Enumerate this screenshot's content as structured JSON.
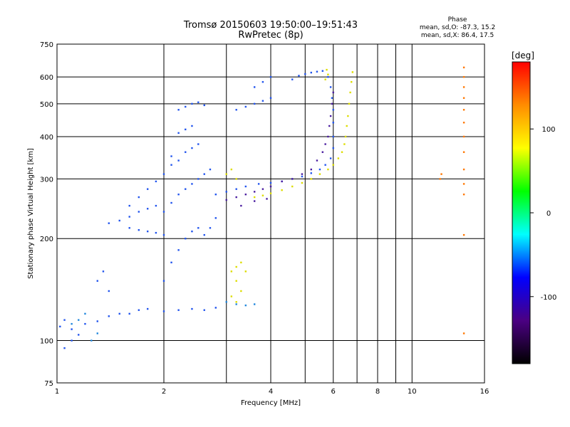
{
  "header": {
    "title_line1": "Tromsø 20150603 19:50:00–19:51:43",
    "title_line2": "RwPretec (8p)",
    "phase_heading": "Phase",
    "phase_o": "mean, sd,O: -87.3, 15.2",
    "phase_x": "mean, sd,X:  86.4, 17.5"
  },
  "chart_data": {
    "type": "scatter",
    "title": "Tromsø 20150603 19:50:00–19:51:43",
    "subtitle": "RwPretec (8p)",
    "xlabel": "Frequency [MHz]",
    "ylabel": "Stationary phase Virtual Height [km]",
    "xscale": "log",
    "yscale": "log",
    "xlim": [
      1,
      16
    ],
    "ylim": [
      75,
      750
    ],
    "x_ticks": [
      1,
      2,
      4,
      6,
      8,
      10,
      16
    ],
    "x_gridlines": [
      2,
      3,
      4,
      5,
      6,
      7,
      8,
      9,
      10
    ],
    "y_ticks": [
      75,
      100,
      200,
      300,
      400,
      500,
      600,
      750
    ],
    "y_gridlines": [
      100,
      200,
      300,
      400,
      500,
      600
    ],
    "grid": true,
    "colorbar": {
      "label": "[deg]",
      "min": -180,
      "max": 180,
      "ticks": [
        100,
        0,
        -100
      ],
      "colors": [
        "#000000",
        "#4b0082",
        "#0000ff",
        "#00ffff",
        "#00ff00",
        "#ffff00",
        "#ff8c00",
        "#ff0000"
      ]
    },
    "series": [
      {
        "color": "#2255ee",
        "points": [
          [
            1.02,
            110
          ],
          [
            1.05,
            115
          ],
          [
            1.1,
            108
          ],
          [
            1.15,
            104
          ],
          [
            1.2,
            112
          ],
          [
            1.3,
            114
          ],
          [
            1.4,
            118
          ],
          [
            1.5,
            120
          ],
          [
            1.6,
            120
          ],
          [
            1.7,
            123
          ],
          [
            1.8,
            124
          ],
          [
            2.0,
            122
          ],
          [
            2.2,
            123
          ],
          [
            2.4,
            124
          ],
          [
            2.6,
            123
          ],
          [
            2.8,
            125
          ],
          [
            2.0,
            150
          ],
          [
            2.1,
            170
          ],
          [
            2.2,
            185
          ],
          [
            2.3,
            200
          ],
          [
            2.4,
            210
          ],
          [
            2.5,
            215
          ],
          [
            2.6,
            205
          ],
          [
            2.7,
            215
          ],
          [
            2.8,
            230
          ],
          [
            2.0,
            240
          ],
          [
            2.1,
            255
          ],
          [
            2.2,
            270
          ],
          [
            2.3,
            280
          ],
          [
            2.4,
            290
          ],
          [
            2.5,
            300
          ],
          [
            2.6,
            310
          ],
          [
            2.7,
            320
          ],
          [
            2.1,
            350
          ],
          [
            2.2,
            340
          ],
          [
            2.3,
            360
          ],
          [
            2.4,
            370
          ],
          [
            2.5,
            380
          ],
          [
            2.2,
            410
          ],
          [
            2.3,
            420
          ],
          [
            2.4,
            430
          ],
          [
            2.2,
            480
          ],
          [
            2.3,
            490
          ],
          [
            2.4,
            500
          ],
          [
            2.5,
            505
          ],
          [
            2.6,
            495
          ],
          [
            1.4,
            222
          ],
          [
            1.5,
            226
          ],
          [
            1.6,
            232
          ],
          [
            1.7,
            240
          ],
          [
            1.8,
            245
          ],
          [
            1.9,
            250
          ],
          [
            1.6,
            215
          ],
          [
            1.7,
            212
          ],
          [
            1.8,
            210
          ],
          [
            1.9,
            208
          ],
          [
            2.0,
            205
          ],
          [
            1.6,
            250
          ],
          [
            1.7,
            265
          ],
          [
            1.8,
            280
          ],
          [
            1.9,
            295
          ],
          [
            2.0,
            310
          ],
          [
            2.1,
            330
          ],
          [
            3.2,
            480
          ],
          [
            3.4,
            490
          ],
          [
            3.6,
            500
          ],
          [
            3.8,
            510
          ],
          [
            4.0,
            520
          ],
          [
            3.6,
            560
          ],
          [
            3.8,
            580
          ],
          [
            4.0,
            600
          ],
          [
            4.6,
            590
          ],
          [
            4.8,
            605
          ],
          [
            5.0,
            612
          ],
          [
            5.2,
            618
          ],
          [
            5.4,
            622
          ],
          [
            5.6,
            625
          ],
          [
            5.8,
            600
          ],
          [
            5.9,
            560
          ],
          [
            5.95,
            520
          ],
          [
            6.0,
            480
          ],
          [
            6.0,
            440
          ],
          [
            6.0,
            400
          ],
          [
            6.0,
            370
          ],
          [
            5.9,
            345
          ],
          [
            5.7,
            330
          ],
          [
            5.5,
            320
          ],
          [
            5.2,
            312
          ],
          [
            4.9,
            305
          ],
          [
            4.6,
            300
          ],
          [
            4.3,
            295
          ],
          [
            4.0,
            292
          ],
          [
            3.7,
            290
          ],
          [
            3.4,
            285
          ],
          [
            3.2,
            280
          ],
          [
            3.0,
            275
          ],
          [
            2.8,
            270
          ],
          [
            1.3,
            150
          ],
          [
            1.35,
            160
          ],
          [
            1.4,
            140
          ],
          [
            1.05,
            95
          ],
          [
            1.1,
            100
          ]
        ]
      },
      {
        "color": "#4b1ea0",
        "points": [
          [
            3.0,
            260
          ],
          [
            3.2,
            265
          ],
          [
            3.4,
            270
          ],
          [
            3.6,
            275
          ],
          [
            3.8,
            280
          ],
          [
            4.0,
            285
          ],
          [
            4.3,
            295
          ],
          [
            4.6,
            300
          ],
          [
            4.9,
            310
          ],
          [
            5.2,
            320
          ],
          [
            5.4,
            340
          ],
          [
            5.6,
            360
          ],
          [
            5.7,
            380
          ],
          [
            5.8,
            400
          ],
          [
            5.85,
            430
          ],
          [
            5.9,
            460
          ],
          [
            5.95,
            500
          ],
          [
            6.0,
            540
          ],
          [
            3.3,
            250
          ],
          [
            3.6,
            258
          ],
          [
            3.9,
            262
          ]
        ]
      },
      {
        "color": "#dddd00",
        "points": [
          [
            3.6,
            265
          ],
          [
            3.8,
            268
          ],
          [
            4.0,
            272
          ],
          [
            4.3,
            278
          ],
          [
            4.6,
            285
          ],
          [
            4.9,
            292
          ],
          [
            5.2,
            300
          ],
          [
            5.5,
            310
          ],
          [
            5.8,
            320
          ],
          [
            6.0,
            330
          ],
          [
            6.2,
            345
          ],
          [
            6.35,
            360
          ],
          [
            6.45,
            380
          ],
          [
            6.5,
            400
          ],
          [
            6.55,
            430
          ],
          [
            6.6,
            460
          ],
          [
            6.65,
            500
          ],
          [
            6.7,
            540
          ],
          [
            6.75,
            580
          ],
          [
            6.8,
            620
          ],
          [
            5.7,
            590
          ],
          [
            5.8,
            610
          ],
          [
            5.75,
            630
          ],
          [
            3.1,
            160
          ],
          [
            3.2,
            165
          ],
          [
            3.3,
            170
          ],
          [
            3.4,
            160
          ],
          [
            3.2,
            150
          ],
          [
            3.3,
            140
          ],
          [
            3.1,
            135
          ],
          [
            3.2,
            130
          ],
          [
            3.0,
            310
          ],
          [
            3.1,
            320
          ],
          [
            3.2,
            300
          ]
        ]
      },
      {
        "color": "#2288dd",
        "points": [
          [
            1.25,
            100
          ],
          [
            1.3,
            105
          ],
          [
            1.15,
            115
          ],
          [
            1.2,
            120
          ],
          [
            1.1,
            112
          ],
          [
            3.0,
            130
          ],
          [
            3.2,
            128
          ],
          [
            3.4,
            127
          ],
          [
            3.6,
            128
          ]
        ]
      },
      {
        "color": "#ff7700",
        "points": [
          [
            14.0,
            640
          ],
          [
            14.0,
            600
          ],
          [
            14.0,
            560
          ],
          [
            14.0,
            520
          ],
          [
            14.0,
            480
          ],
          [
            14.0,
            440
          ],
          [
            14.0,
            400
          ],
          [
            14.0,
            360
          ],
          [
            14.0,
            320
          ],
          [
            14.0,
            290
          ],
          [
            14.0,
            270
          ],
          [
            14.0,
            205
          ],
          [
            14.0,
            105
          ],
          [
            12.0,
            300
          ],
          [
            12.1,
            310
          ]
        ]
      }
    ]
  }
}
